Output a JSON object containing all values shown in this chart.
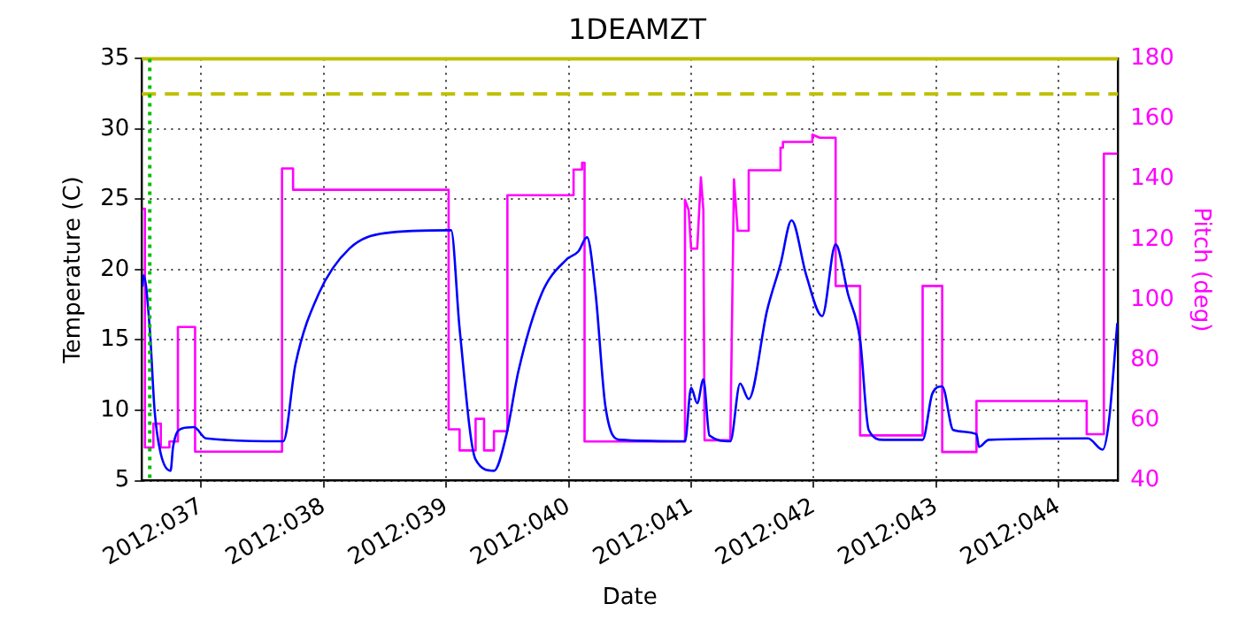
{
  "chart_data": {
    "type": "line",
    "title": "1DEAMZT",
    "xlabel": "Date",
    "ylabel": "Temperature (C)",
    "y2label": "Pitch (deg)",
    "xlim": [
      "2012-02-05T12:22",
      "2012-02-13T11:38"
    ],
    "xticks": [
      {
        "value": "2012-02-06",
        "label": "2012:037"
      },
      {
        "value": "2012-02-07",
        "label": "2012:038"
      },
      {
        "value": "2012-02-08",
        "label": "2012:039"
      },
      {
        "value": "2012-02-09",
        "label": "2012:040"
      },
      {
        "value": "2012-02-10",
        "label": "2012:041"
      },
      {
        "value": "2012-02-11",
        "label": "2012:042"
      },
      {
        "value": "2012-02-12",
        "label": "2012:043"
      },
      {
        "value": "2012-02-13",
        "label": "2012:044"
      }
    ],
    "ylim": [
      5,
      35
    ],
    "yticks": [
      5,
      10,
      15,
      20,
      25,
      30,
      35
    ],
    "y2lim": [
      40,
      180
    ],
    "y2ticks": [
      40,
      60,
      80,
      100,
      120,
      140,
      160,
      180
    ],
    "grid": true,
    "line_style": "solid",
    "marker": "none",
    "series": [
      {
        "color": "#0000ff",
        "x": [
          "2012-02-05T12:29",
          "2012-02-05T12:43",
          "2012-02-05T13:55",
          "2012-02-05T14:53",
          "2012-02-05T16:05",
          "2012-02-05T18:00",
          "2012-02-05T18:29",
          "2012-02-05T20:10",
          "2012-02-05T22:34",
          "2012-02-06T00:58",
          "2012-02-06T16:05",
          "2012-02-06T18:29",
          "2012-02-06T23:02",
          "2012-02-07T05:02",
          "2012-02-07T12:00",
          "2012-02-08T00:58",
          "2012-02-08T02:38",
          "2012-02-08T05:46",
          "2012-02-08T09:22",
          "2012-02-08T11:46",
          "2012-02-08T14:10",
          "2012-02-08T18:43",
          "2012-02-08T23:31",
          "2012-02-09T01:55",
          "2012-02-09T03:36",
          "2012-02-09T05:17",
          "2012-02-09T07:12",
          "2012-02-09T10:05",
          "2012-02-09T22:48",
          "2012-02-10T00:00",
          "2012-02-10T01:12",
          "2012-02-10T02:24",
          "2012-02-10T03:36",
          "2012-02-10T07:41",
          "2012-02-10T09:36",
          "2012-02-10T11:17",
          "2012-02-10T14:53",
          "2012-02-10T17:31",
          "2012-02-10T19:41",
          "2012-02-10T22:34",
          "2012-02-11T01:41",
          "2012-02-11T04:19",
          "2012-02-11T06:43",
          "2012-02-11T09:07",
          "2012-02-11T10:48",
          "2012-02-11T13:41",
          "2012-02-11T21:22",
          "2012-02-11T23:17",
          "2012-02-12T01:12",
          "2012-02-12T03:22",
          "2012-02-12T07:55",
          "2012-02-12T08:24",
          "2012-02-12T10:19",
          "2012-02-13T05:46",
          "2012-02-13T08:38",
          "2012-02-13T09:50",
          "2012-02-13T11:31"
        ],
        "values": [
          18.8,
          19.6,
          15.8,
          9.9,
          6.9,
          5.7,
          7.4,
          8.7,
          8.8,
          8.0,
          7.8,
          13.3,
          18.3,
          21.5,
          22.6,
          22.8,
          15.8,
          6.5,
          5.7,
          8.2,
          12.8,
          18.3,
          20.7,
          21.3,
          22.3,
          18.3,
          10.3,
          7.9,
          7.8,
          11.6,
          10.5,
          12.2,
          8.2,
          7.8,
          11.9,
          10.8,
          17.1,
          20.4,
          23.5,
          19.6,
          16.7,
          21.8,
          18.3,
          15.0,
          8.6,
          7.9,
          7.9,
          11.2,
          11.7,
          8.6,
          8.3,
          7.4,
          7.9,
          8.0,
          7.2,
          9.1,
          16.2
        ]
      },
      {
        "color": "#ff00ff",
        "axis": "y2",
        "x": [
          "2012-02-05T12:29",
          "2012-02-05T12:58",
          "2012-02-05T12:58",
          "2012-02-05T14:38",
          "2012-02-05T14:38",
          "2012-02-05T16:05",
          "2012-02-05T16:05",
          "2012-02-05T17:46",
          "2012-02-05T17:46",
          "2012-02-05T19:26",
          "2012-02-05T19:26",
          "2012-02-05T22:48",
          "2012-02-05T22:48",
          "2012-02-06T15:50",
          "2012-02-06T15:50",
          "2012-02-06T18:00",
          "2012-02-06T18:00",
          "2012-02-08T00:29",
          "2012-02-08T00:29",
          "2012-02-08T02:38",
          "2012-02-08T02:38",
          "2012-02-08T05:46",
          "2012-02-08T05:46",
          "2012-02-08T07:26",
          "2012-02-08T07:26",
          "2012-02-08T09:22",
          "2012-02-08T09:22",
          "2012-02-08T12:00",
          "2012-02-08T12:00",
          "2012-02-09T00:58",
          "2012-02-09T00:58",
          "2012-02-09T02:38",
          "2012-02-09T02:38",
          "2012-02-09T03:07",
          "2012-02-09T03:07",
          "2012-02-09T22:48",
          "2012-02-09T22:48",
          "2012-02-09T23:31",
          "2012-02-10T00:00",
          "2012-02-10T01:12",
          "2012-02-10T01:55",
          "2012-02-10T02:24",
          "2012-02-10T02:38",
          "2012-02-10T07:41",
          "2012-02-10T08:24",
          "2012-02-10T09:07",
          "2012-02-10T11:17",
          "2012-02-10T11:17",
          "2012-02-10T17:31",
          "2012-02-10T17:31",
          "2012-02-10T18:00",
          "2012-02-10T18:00",
          "2012-02-10T23:46",
          "2012-02-10T23:46",
          "2012-02-11T01:12",
          "2012-02-11T04:19",
          "2012-02-11T04:19",
          "2012-02-11T09:07",
          "2012-02-11T09:07",
          "2012-02-11T21:22",
          "2012-02-11T21:22",
          "2012-02-12T01:12",
          "2012-02-12T01:12",
          "2012-02-12T07:55",
          "2012-02-12T07:55",
          "2012-02-13T05:31",
          "2012-02-13T05:31",
          "2012-02-13T08:53",
          "2012-02-13T08:53",
          "2012-02-13T11:31"
        ],
        "values": [
          130.2,
          130.2,
          51,
          51,
          58.9,
          58.9,
          51,
          51,
          53,
          53,
          91,
          91,
          49.6,
          49.6,
          143.6,
          143.6,
          136.5,
          136.5,
          57,
          57,
          50,
          50,
          60.5,
          60.5,
          50,
          50,
          56.4,
          56.4,
          134.7,
          134.7,
          143.2,
          143.2,
          145.5,
          145.5,
          53,
          53,
          133.2,
          129.8,
          117,
          117,
          140.6,
          129.8,
          53.4,
          53.4,
          140,
          122.9,
          122.9,
          143,
          143,
          150.5,
          150.5,
          152.4,
          152.4,
          154.8,
          153.8,
          153.8,
          104.6,
          104.6,
          55,
          55,
          104.6,
          104.6,
          49.5,
          49.5,
          66.4,
          66.4,
          55.4,
          55.4,
          148.5,
          148.5
        ]
      }
    ],
    "ref_lines": [
      {
        "axis": "y",
        "value": 32.5,
        "color": "#bfbf00",
        "line_style": "dashed"
      },
      {
        "axis": "y",
        "value": 35,
        "color": "#bfbf00",
        "line_style": "solid"
      },
      {
        "axis": "x",
        "value": "2012-02-05T13:55",
        "color": "#00bf00",
        "line_style": "dotted"
      }
    ]
  }
}
